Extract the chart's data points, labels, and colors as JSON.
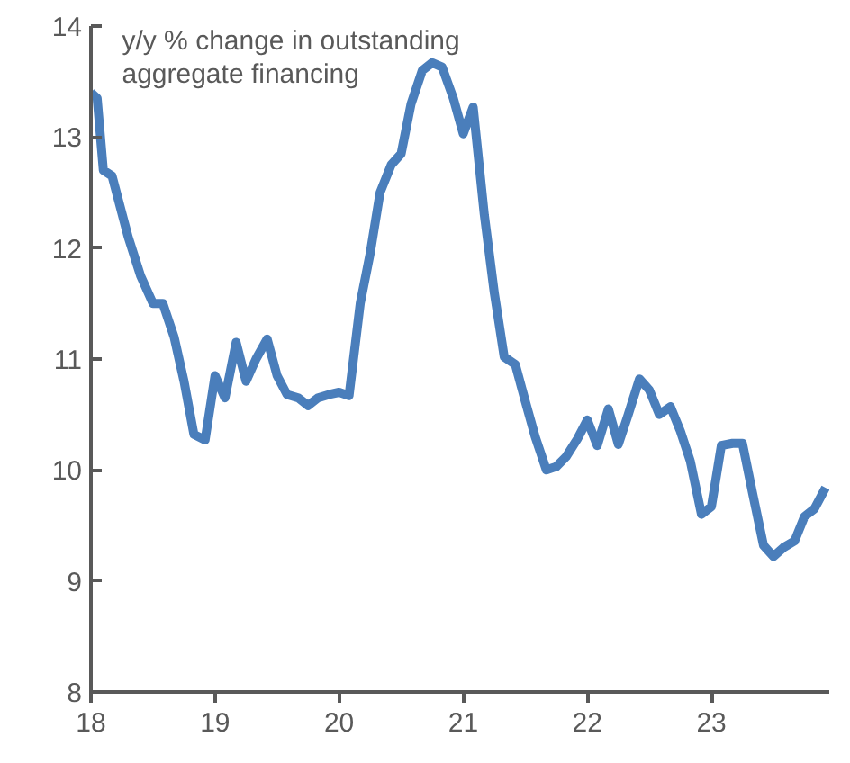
{
  "chart_data": {
    "type": "line",
    "annotations": [
      "y/y % change in outstanding\naggregate financing"
    ],
    "xlim": [
      18,
      23.95
    ],
    "xticks": [
      18,
      19,
      20,
      21,
      22,
      23
    ],
    "ylim": [
      8,
      14
    ],
    "yticks": [
      8,
      9,
      10,
      11,
      12,
      13,
      14
    ],
    "grid": false,
    "marker": "none",
    "line_style": "solid",
    "series": [
      {
        "color": "#4a7ebb",
        "x": [
          18.0,
          18.05,
          18.1,
          18.17,
          18.3,
          18.4,
          18.5,
          18.58,
          18.67,
          18.75,
          18.83,
          18.92,
          19.0,
          19.08,
          19.17,
          19.25,
          19.33,
          19.42,
          19.5,
          19.58,
          19.67,
          19.75,
          19.83,
          19.92,
          20.0,
          20.08,
          20.17,
          20.25,
          20.33,
          20.42,
          20.5,
          20.58,
          20.67,
          20.75,
          20.83,
          20.92,
          21.0,
          21.08,
          21.17,
          21.25,
          21.33,
          21.42,
          21.5,
          21.58,
          21.67,
          21.75,
          21.83,
          21.92,
          22.0,
          22.08,
          22.17,
          22.25,
          22.33,
          22.42,
          22.5,
          22.58,
          22.67,
          22.75,
          22.83,
          22.92,
          23.0,
          23.08,
          23.17,
          23.25,
          23.33,
          23.42,
          23.5,
          23.58,
          23.67,
          23.75,
          23.83,
          23.92
        ],
        "values": [
          13.4,
          13.35,
          12.7,
          12.65,
          12.1,
          11.75,
          11.5,
          11.5,
          11.2,
          10.8,
          10.32,
          10.27,
          10.85,
          10.65,
          11.15,
          10.8,
          11.0,
          11.18,
          10.85,
          10.68,
          10.65,
          10.58,
          10.65,
          10.68,
          10.7,
          10.67,
          11.5,
          11.95,
          12.5,
          12.75,
          12.85,
          13.3,
          13.6,
          13.67,
          13.63,
          13.35,
          13.03,
          13.27,
          12.3,
          11.6,
          11.02,
          10.95,
          10.62,
          10.3,
          10.0,
          10.03,
          10.12,
          10.28,
          10.45,
          10.22,
          10.55,
          10.23,
          10.5,
          10.82,
          10.72,
          10.5,
          10.57,
          10.35,
          10.08,
          9.6,
          9.67,
          10.22,
          10.24,
          10.24,
          9.8,
          9.32,
          9.22,
          9.3,
          9.36,
          9.58,
          9.65,
          9.84
        ]
      }
    ]
  }
}
